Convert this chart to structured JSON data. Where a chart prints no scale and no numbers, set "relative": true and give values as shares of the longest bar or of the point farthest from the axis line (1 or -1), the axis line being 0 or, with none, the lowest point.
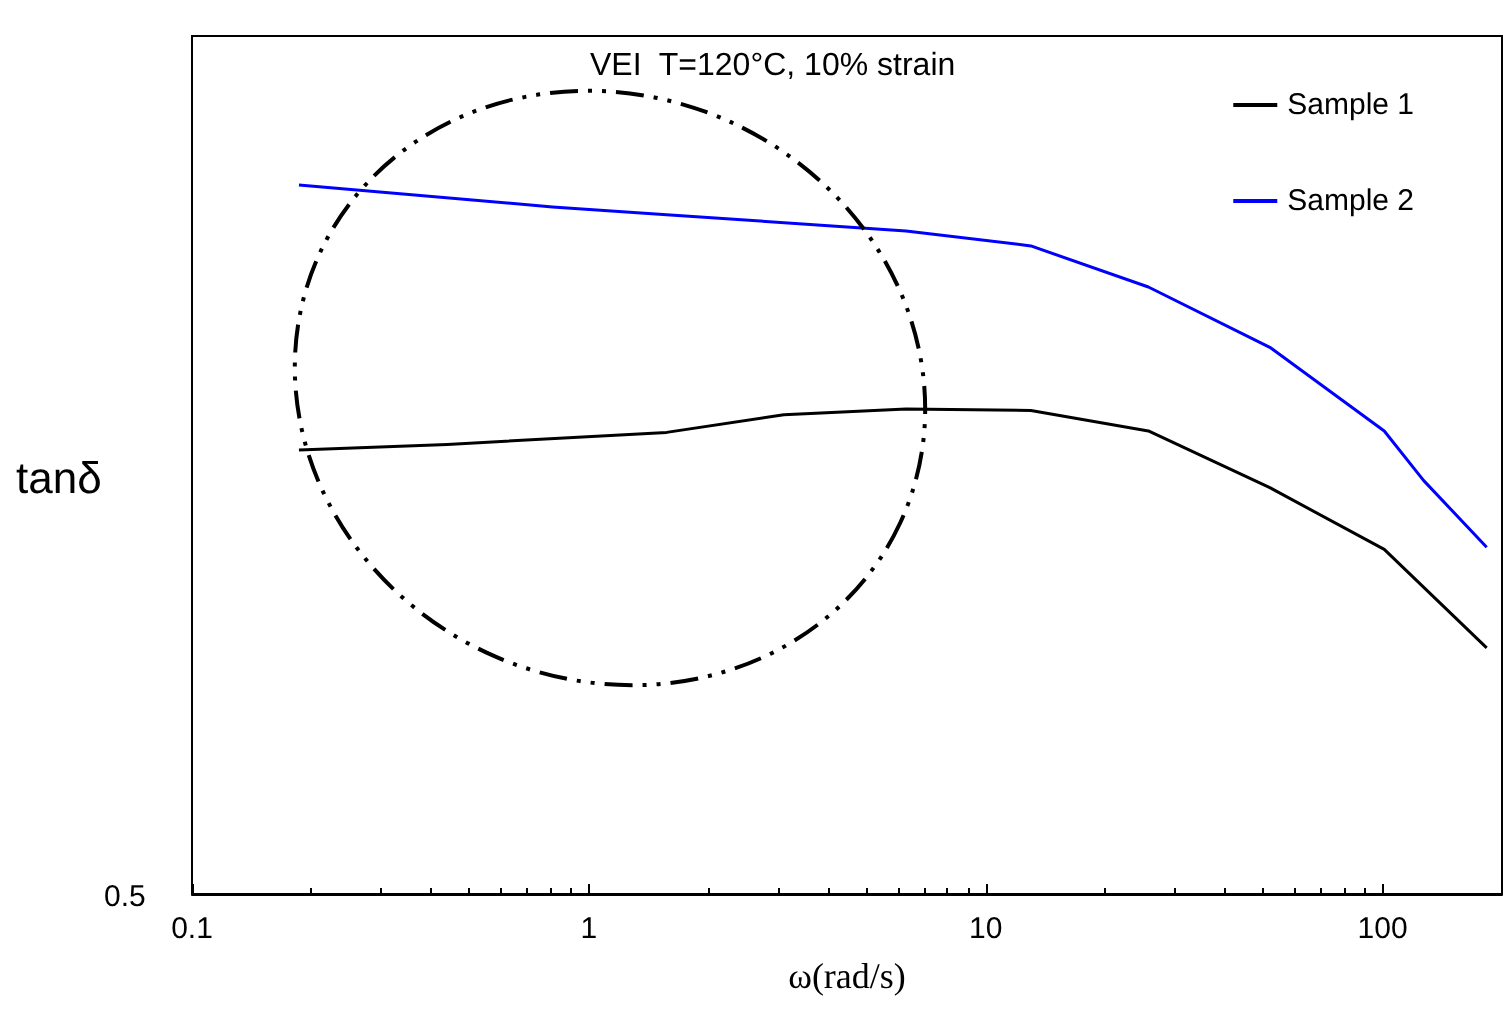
{
  "chart_data": {
    "type": "line",
    "title": "VEI  T=120°C, 10% strain",
    "xlabel": "ω(rad/s)",
    "ylabel": "tanδ",
    "relative": true,
    "log": "x",
    "xlim": [
      0.1,
      200
    ],
    "xticks": [
      0.1,
      1,
      10,
      100
    ],
    "annotations": [
      "0.5"
    ],
    "legend": "top right",
    "grid": false,
    "marker": "none",
    "line_style": "solid",
    "series": [
      {
        "name": "Sample 1",
        "color": "#000000",
        "x": [
          0.186,
          0.44,
          1.57,
          3.1,
          6.3,
          13.0,
          25.7,
          52,
          101,
          183
        ],
        "values": [
          0.626,
          0.634,
          0.651,
          0.676,
          0.684,
          0.682,
          0.653,
          0.573,
          0.486,
          0.347
        ]
      },
      {
        "name": "Sample 2",
        "color": "#0000ff",
        "x": [
          0.186,
          0.81,
          1.57,
          6.3,
          13.0,
          25.7,
          52,
          101,
          127,
          183
        ],
        "values": [
          1.0,
          0.969,
          0.958,
          0.935,
          0.914,
          0.856,
          0.771,
          0.653,
          0.583,
          0.489
        ]
      }
    ]
  }
}
